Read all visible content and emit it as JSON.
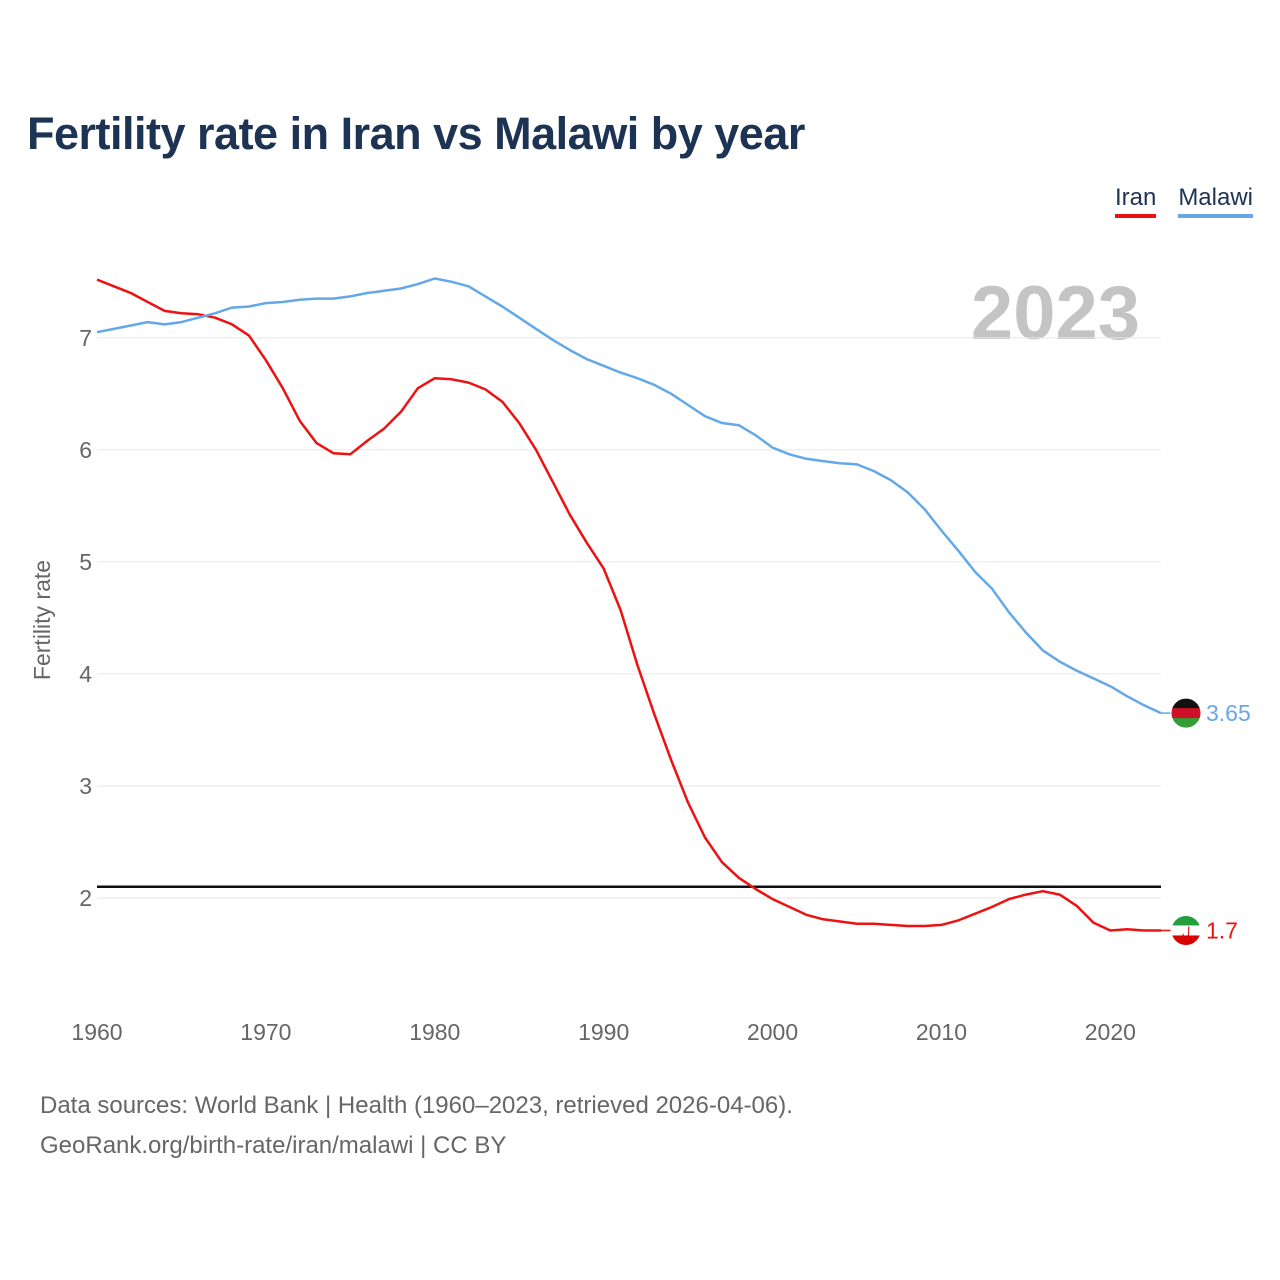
{
  "chart_data": {
    "type": "line",
    "title": "Fertility rate in Iran vs Malawi by year",
    "ylabel": "Fertility rate",
    "xlabel": "",
    "year_label": "2023",
    "xlim": [
      1960,
      2023
    ],
    "ylim": [
      1.0,
      7.9
    ],
    "x_ticks": [
      1960,
      1970,
      1980,
      1990,
      2000,
      2010,
      2020
    ],
    "y_ticks": [
      2,
      3,
      4,
      5,
      6,
      7
    ],
    "reference_line": 2.1,
    "x": [
      1960,
      1961,
      1962,
      1963,
      1964,
      1965,
      1966,
      1967,
      1968,
      1969,
      1970,
      1971,
      1972,
      1973,
      1974,
      1975,
      1976,
      1977,
      1978,
      1979,
      1980,
      1981,
      1982,
      1983,
      1984,
      1985,
      1986,
      1987,
      1988,
      1989,
      1990,
      1991,
      1992,
      1993,
      1994,
      1995,
      1996,
      1997,
      1998,
      1999,
      2000,
      2001,
      2002,
      2003,
      2004,
      2005,
      2006,
      2007,
      2008,
      2009,
      2010,
      2011,
      2012,
      2013,
      2014,
      2015,
      2016,
      2017,
      2018,
      2019,
      2020,
      2021,
      2022,
      2023
    ],
    "series": [
      {
        "name": "Iran",
        "color": "#ee1111",
        "end_label": "1.7",
        "values": [
          7.52,
          7.46,
          7.4,
          7.32,
          7.24,
          7.22,
          7.21,
          7.18,
          7.12,
          7.02,
          6.8,
          6.55,
          6.26,
          6.06,
          5.97,
          5.96,
          6.08,
          6.19,
          6.34,
          6.55,
          6.64,
          6.63,
          6.6,
          6.54,
          6.43,
          6.24,
          6.0,
          5.71,
          5.42,
          5.17,
          4.94,
          4.57,
          4.08,
          3.64,
          3.23,
          2.85,
          2.54,
          2.32,
          2.18,
          2.08,
          1.99,
          1.92,
          1.85,
          1.81,
          1.79,
          1.77,
          1.77,
          1.76,
          1.75,
          1.75,
          1.76,
          1.8,
          1.86,
          1.92,
          1.99,
          2.03,
          2.06,
          2.03,
          1.93,
          1.78,
          1.71,
          1.72,
          1.71,
          1.71
        ]
      },
      {
        "name": "Malawi",
        "color": "#64a8e8",
        "end_label": "3.65",
        "values": [
          7.05,
          7.08,
          7.11,
          7.14,
          7.12,
          7.14,
          7.18,
          7.22,
          7.27,
          7.28,
          7.31,
          7.32,
          7.34,
          7.35,
          7.35,
          7.37,
          7.4,
          7.42,
          7.44,
          7.48,
          7.53,
          7.5,
          7.46,
          7.37,
          7.28,
          7.18,
          7.08,
          6.98,
          6.89,
          6.81,
          6.75,
          6.69,
          6.64,
          6.58,
          6.5,
          6.4,
          6.3,
          6.24,
          6.22,
          6.13,
          6.02,
          5.96,
          5.92,
          5.9,
          5.88,
          5.87,
          5.81,
          5.73,
          5.62,
          5.47,
          5.28,
          5.1,
          4.91,
          4.76,
          4.55,
          4.37,
          4.21,
          4.11,
          4.03,
          3.96,
          3.89,
          3.8,
          3.72,
          3.65
        ]
      }
    ]
  },
  "legend": {
    "iran": "Iran",
    "malawi": "Malawi"
  },
  "footer": {
    "line1": "Data sources: World Bank | Health (1960–2023, retrieved 2026-04-06).",
    "line2": "GeoRank.org/birth-rate/iran/malawi | CC BY"
  }
}
